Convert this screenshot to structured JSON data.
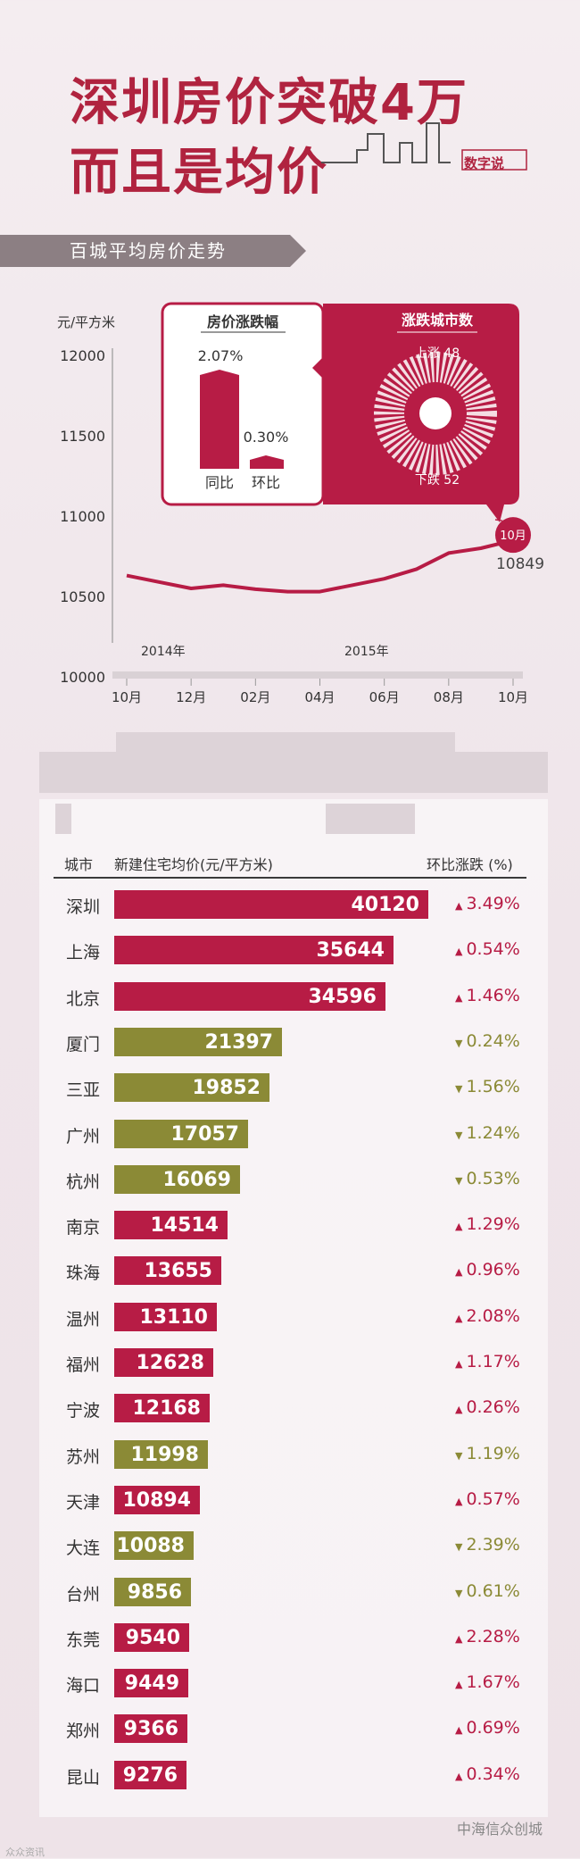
{
  "title": {
    "line1": "深圳房价突破4万",
    "line2": "而且是均价",
    "brand": "数字说"
  },
  "section_label": "百城平均房价走势",
  "line_chart": {
    "ylabel": "元/平方米",
    "yticks": [
      "12000",
      "11500",
      "11000",
      "10500",
      "10000"
    ],
    "years": [
      "2014年",
      "2015年"
    ],
    "xticks": [
      "10月",
      "12月",
      "02月",
      "04月",
      "06月",
      "08月",
      "10月"
    ],
    "end_marker": "10月",
    "end_value": "10849"
  },
  "callout": {
    "left_title": "房价涨跌幅",
    "yoy_value": "2.07%",
    "yoy_label": "同比",
    "mom_value": "0.30%",
    "mom_label": "环比",
    "right_title": "涨跌城市数",
    "up_label": "上涨 48",
    "down_label": "下跌 52"
  },
  "table": {
    "col_city": "城市",
    "col_price": "新建住宅均价(元/平方米)",
    "col_change": "环比涨跌 (%)"
  },
  "colors": {
    "up": "#b71c45",
    "down": "#8b8a36",
    "accent": "#b0233f"
  },
  "chart_data": [
    {
      "type": "line",
      "title": "百城平均房价走势",
      "ylabel": "元/平方米",
      "ylim": [
        10000,
        12000
      ],
      "x": [
        "2014-10",
        "2014-11",
        "2014-12",
        "2015-01",
        "2015-02",
        "2015-03",
        "2015-04",
        "2015-05",
        "2015-06",
        "2015-07",
        "2015-08",
        "2015-09",
        "2015-10"
      ],
      "values": [
        10630,
        10590,
        10550,
        10570,
        10545,
        10530,
        10530,
        10570,
        10610,
        10670,
        10770,
        10800,
        10849
      ],
      "grid": false
    },
    {
      "type": "bar",
      "orientation": "horizontal",
      "categories": [
        "深圳",
        "上海",
        "北京",
        "厦门",
        "三亚",
        "广州",
        "杭州",
        "南京",
        "珠海",
        "温州",
        "福州",
        "宁波",
        "苏州",
        "天津",
        "大连",
        "台州",
        "东莞",
        "海口",
        "郑州",
        "昆山"
      ],
      "values": [
        40120,
        35644,
        34596,
        21397,
        19852,
        17057,
        16069,
        14514,
        13655,
        13110,
        12628,
        12168,
        11998,
        10894,
        10088,
        9856,
        9540,
        9449,
        9366,
        9276
      ],
      "changes": [
        "3.49%",
        "0.54%",
        "1.46%",
        "0.24%",
        "1.56%",
        "1.24%",
        "0.53%",
        "1.29%",
        "0.96%",
        "2.08%",
        "1.17%",
        "0.26%",
        "1.19%",
        "0.57%",
        "2.39%",
        "0.61%",
        "2.28%",
        "1.67%",
        "0.69%",
        "0.34%"
      ],
      "direction": [
        "up",
        "up",
        "up",
        "down",
        "down",
        "down",
        "down",
        "up",
        "up",
        "up",
        "up",
        "up",
        "down",
        "up",
        "down",
        "down",
        "up",
        "up",
        "up",
        "up"
      ]
    }
  ],
  "footer": {
    "source": "中海信众创城",
    "watermark": "众众资讯"
  }
}
